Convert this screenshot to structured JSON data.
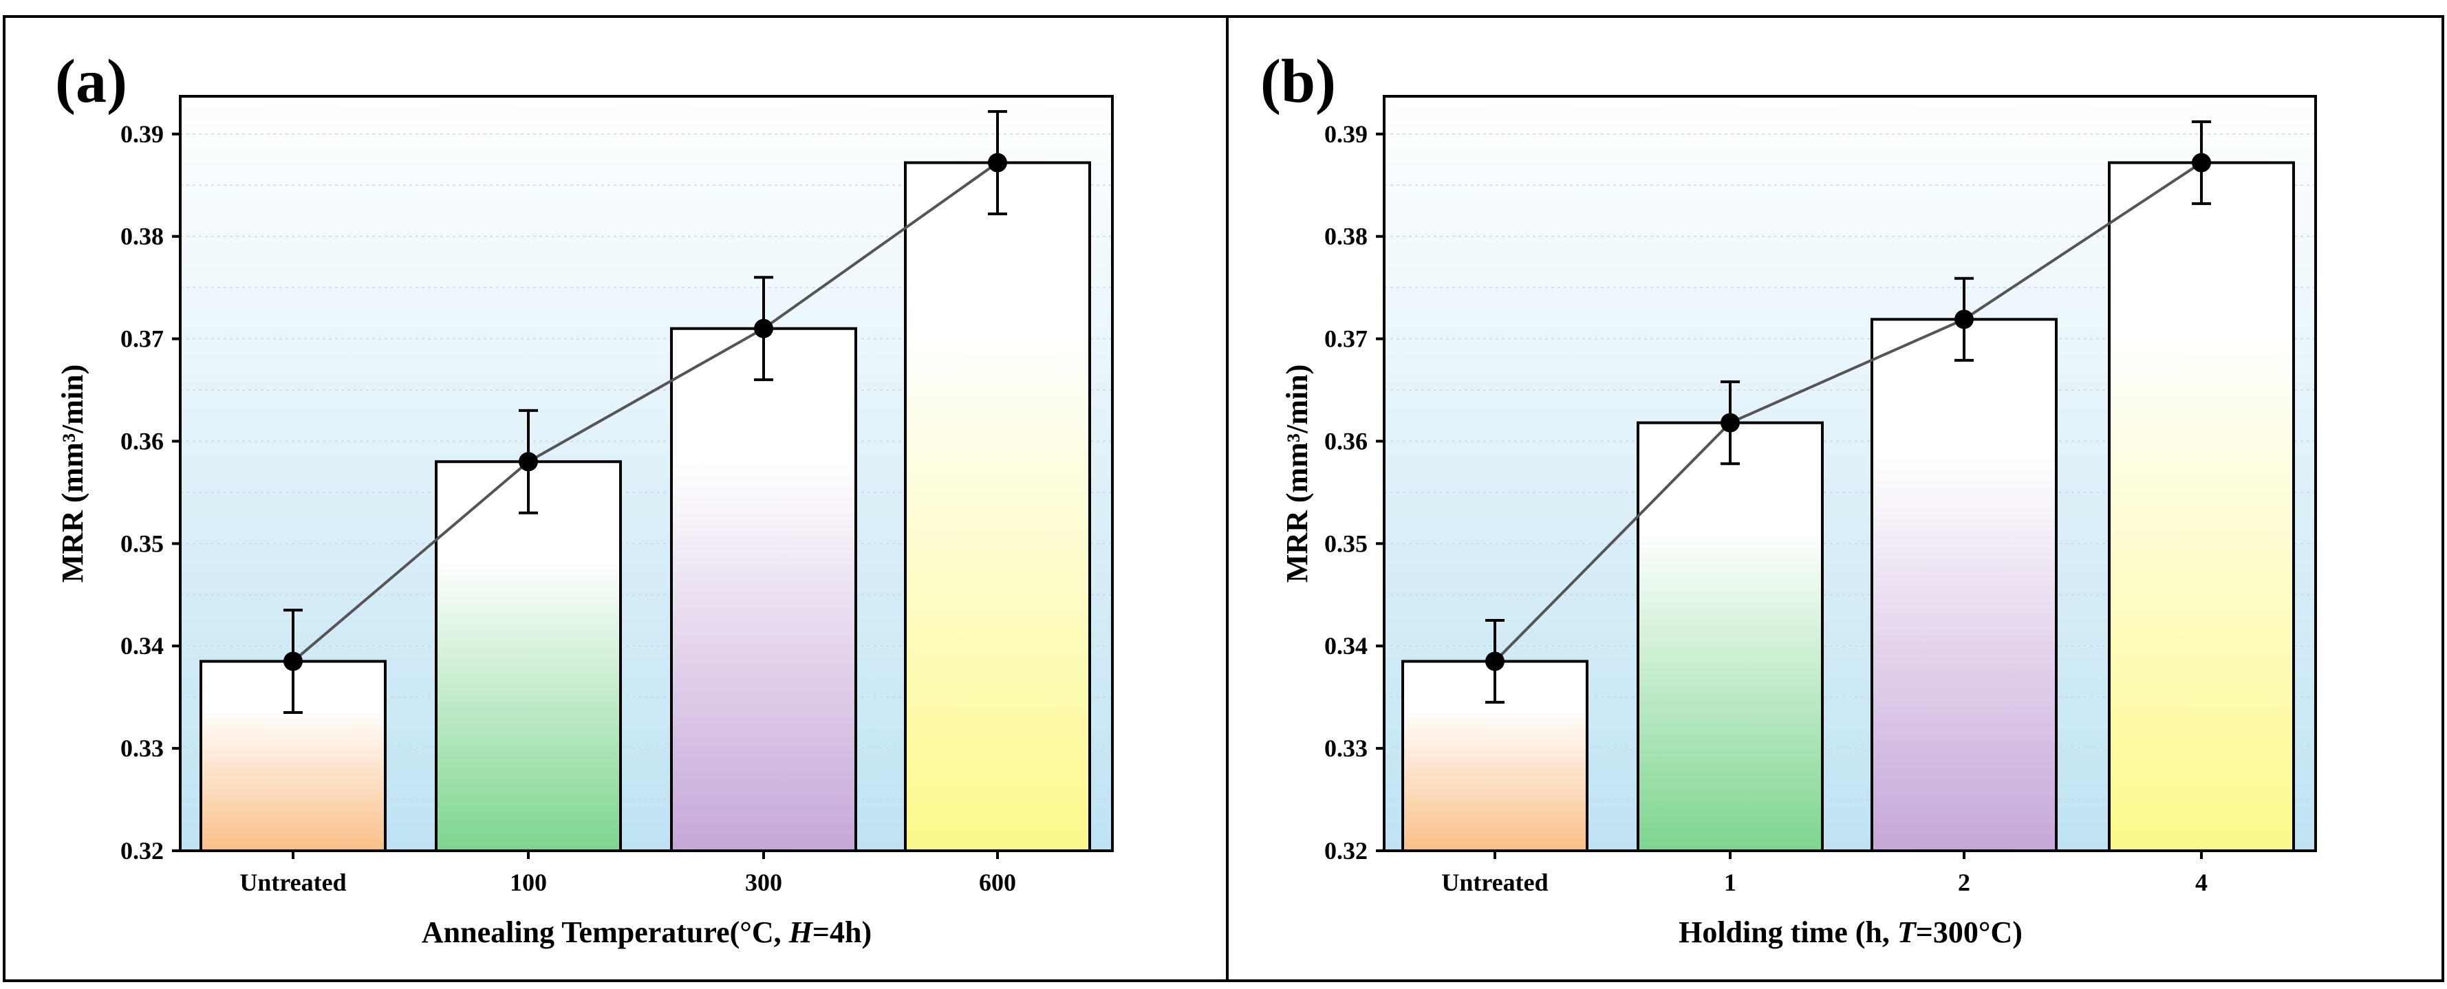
{
  "chart_data": [
    {
      "type": "bar",
      "panel_label": "(a)",
      "xlabel_parts": [
        "Annealing Temperature(°C, ",
        "H",
        "=4h)"
      ],
      "ylabel": "MRR (mm³/min)",
      "categories": [
        "Untreated",
        "100",
        "300",
        "600"
      ],
      "values": [
        0.3385,
        0.358,
        0.371,
        0.3872
      ],
      "errors": [
        0.005,
        0.005,
        0.005,
        0.005
      ],
      "ylim": [
        0.32,
        0.39
      ],
      "yticks": [
        "0.32",
        "0.33",
        "0.34",
        "0.35",
        "0.36",
        "0.37",
        "0.38",
        "0.39"
      ],
      "bar_colors": [
        "#f9c089",
        "#7ed58f",
        "#c6a7d8",
        "#fbf98a"
      ],
      "line_color": "#555555",
      "marker_color": "#000000",
      "background_top": "#ffffff",
      "background_bottom": "#bfe3f3"
    },
    {
      "type": "bar",
      "panel_label": "(b)",
      "xlabel_parts": [
        "Holding time (h, ",
        "T",
        "=300°C)"
      ],
      "ylabel": "MRR (mm³/min)",
      "categories": [
        "Untreated",
        "1",
        "2",
        "4"
      ],
      "values": [
        0.3385,
        0.3618,
        0.3719,
        0.3872
      ],
      "errors": [
        0.004,
        0.004,
        0.004,
        0.004
      ],
      "ylim": [
        0.32,
        0.39
      ],
      "yticks": [
        "0.32",
        "0.33",
        "0.34",
        "0.35",
        "0.36",
        "0.37",
        "0.38",
        "0.39"
      ],
      "bar_colors": [
        "#f9c089",
        "#7ed58f",
        "#c6a7d8",
        "#fbf98a"
      ],
      "line_color": "#555555",
      "marker_color": "#000000",
      "background_top": "#ffffff",
      "background_bottom": "#bfe3f3"
    }
  ]
}
